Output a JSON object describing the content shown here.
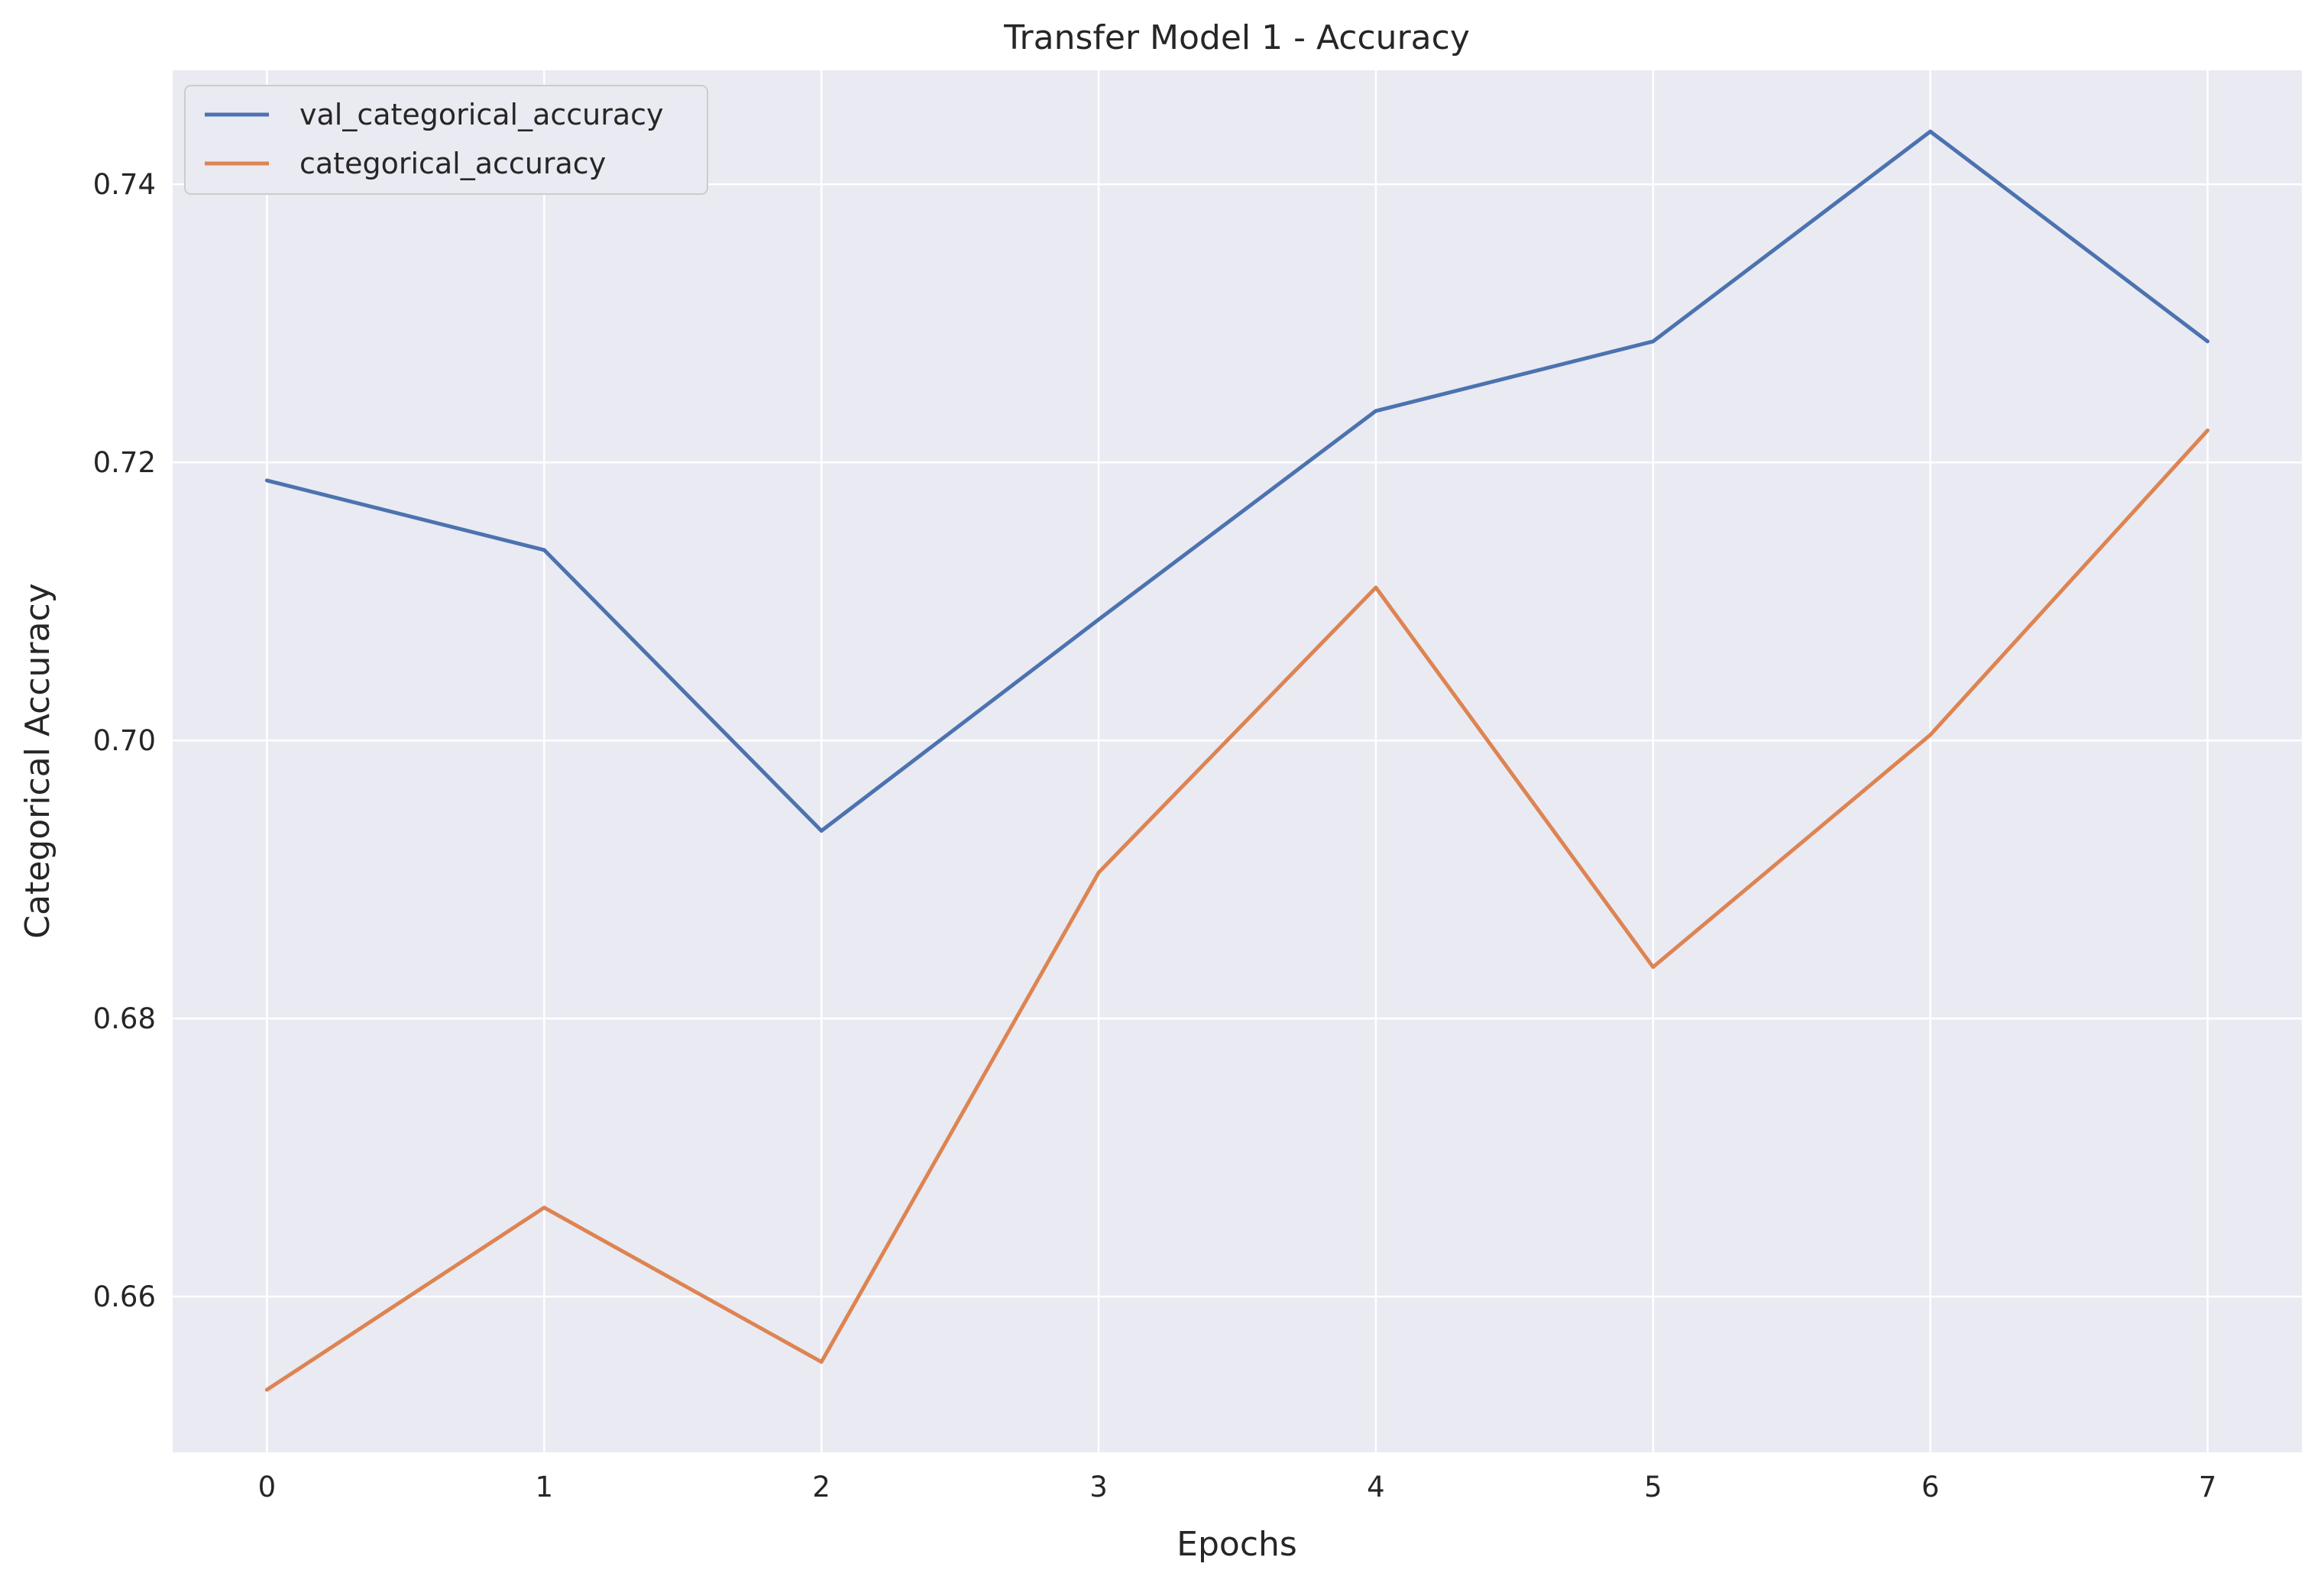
{
  "chart_data": {
    "type": "line",
    "title": "Transfer Model 1 - Accuracy",
    "xlabel": "Epochs",
    "ylabel": "Categorical Accuracy",
    "x": [
      0,
      1,
      2,
      3,
      4,
      5,
      6,
      7
    ],
    "x_ticks": [
      "0",
      "1",
      "2",
      "3",
      "4",
      "5",
      "6",
      "7"
    ],
    "y_ticks": [
      "0.66",
      "0.68",
      "0.70",
      "0.72",
      "0.74"
    ],
    "y_tick_values": [
      0.66,
      0.68,
      0.7,
      0.72,
      0.74
    ],
    "xlim": [
      -0.34,
      7.34
    ],
    "ylim": [
      0.6488,
      0.7482
    ],
    "grid": true,
    "legend_position": "top-left",
    "background_color": "#eaeaf2",
    "grid_color": "#ffffff",
    "series": [
      {
        "name": "val_categorical_accuracy",
        "color": "#4c72b0",
        "values": [
          0.7187,
          0.7137,
          0.6935,
          0.7087,
          0.7237,
          0.7287,
          0.7438,
          0.7287
        ]
      },
      {
        "name": "categorical_accuracy",
        "color": "#dd8452",
        "values": [
          0.6533,
          0.6664,
          0.6553,
          0.6905,
          0.711,
          0.6837,
          0.7004,
          0.7223
        ]
      }
    ]
  }
}
